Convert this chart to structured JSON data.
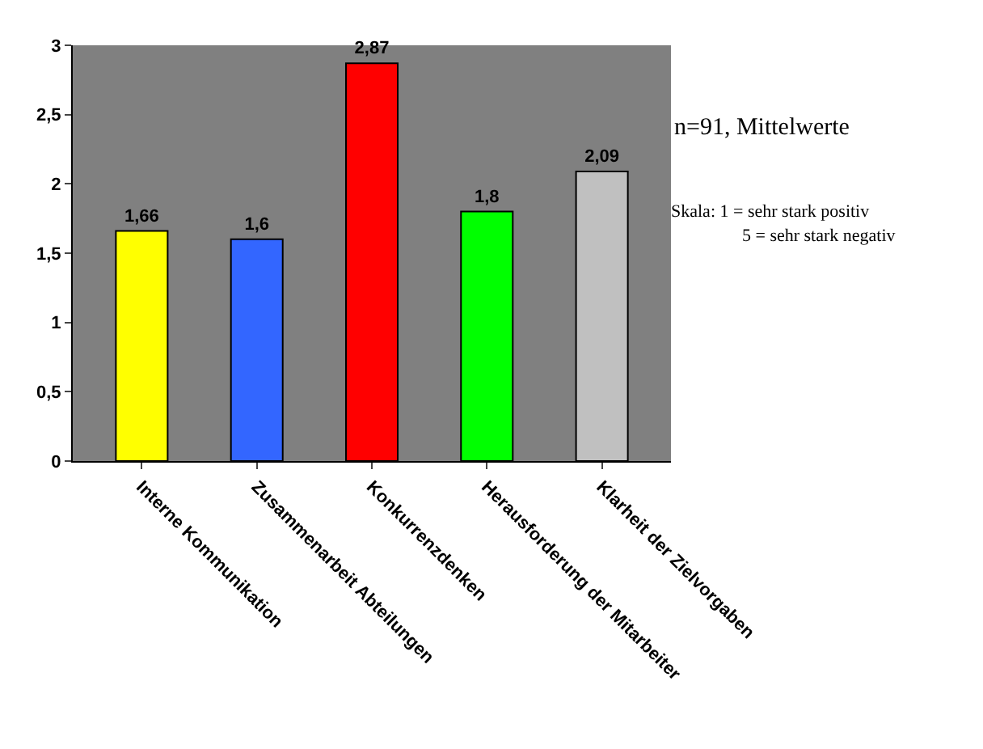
{
  "chart_data": {
    "type": "bar",
    "categories": [
      "Interne Kommunikation",
      "Zusammenarbeit Abteilungen",
      "Konkurrenzdenken",
      "Herausforderung der Mitarbeiter",
      "Klarheit der Zielvorgaben"
    ],
    "values": [
      1.66,
      1.6,
      2.87,
      1.8,
      2.09
    ],
    "value_labels": [
      "1,66",
      "1,6",
      "2,87",
      "1,8",
      "2,09"
    ],
    "colors": [
      "#ffff00",
      "#3366ff",
      "#ff0000",
      "#00ff00",
      "#c0c0c0"
    ],
    "ylim": [
      0,
      3
    ],
    "yticks": [
      0,
      {
        "value": 0.5,
        "label": "0,5"
      },
      1,
      {
        "value": 1.5,
        "label": "1,5"
      },
      2,
      {
        "value": 2.5,
        "label": "2,5"
      },
      3
    ],
    "grid": false,
    "annotations": [
      "n=91, Mittelwerte",
      "Skala: 1 = sehr stark positiv",
      "5 = sehr stark negativ"
    ]
  }
}
